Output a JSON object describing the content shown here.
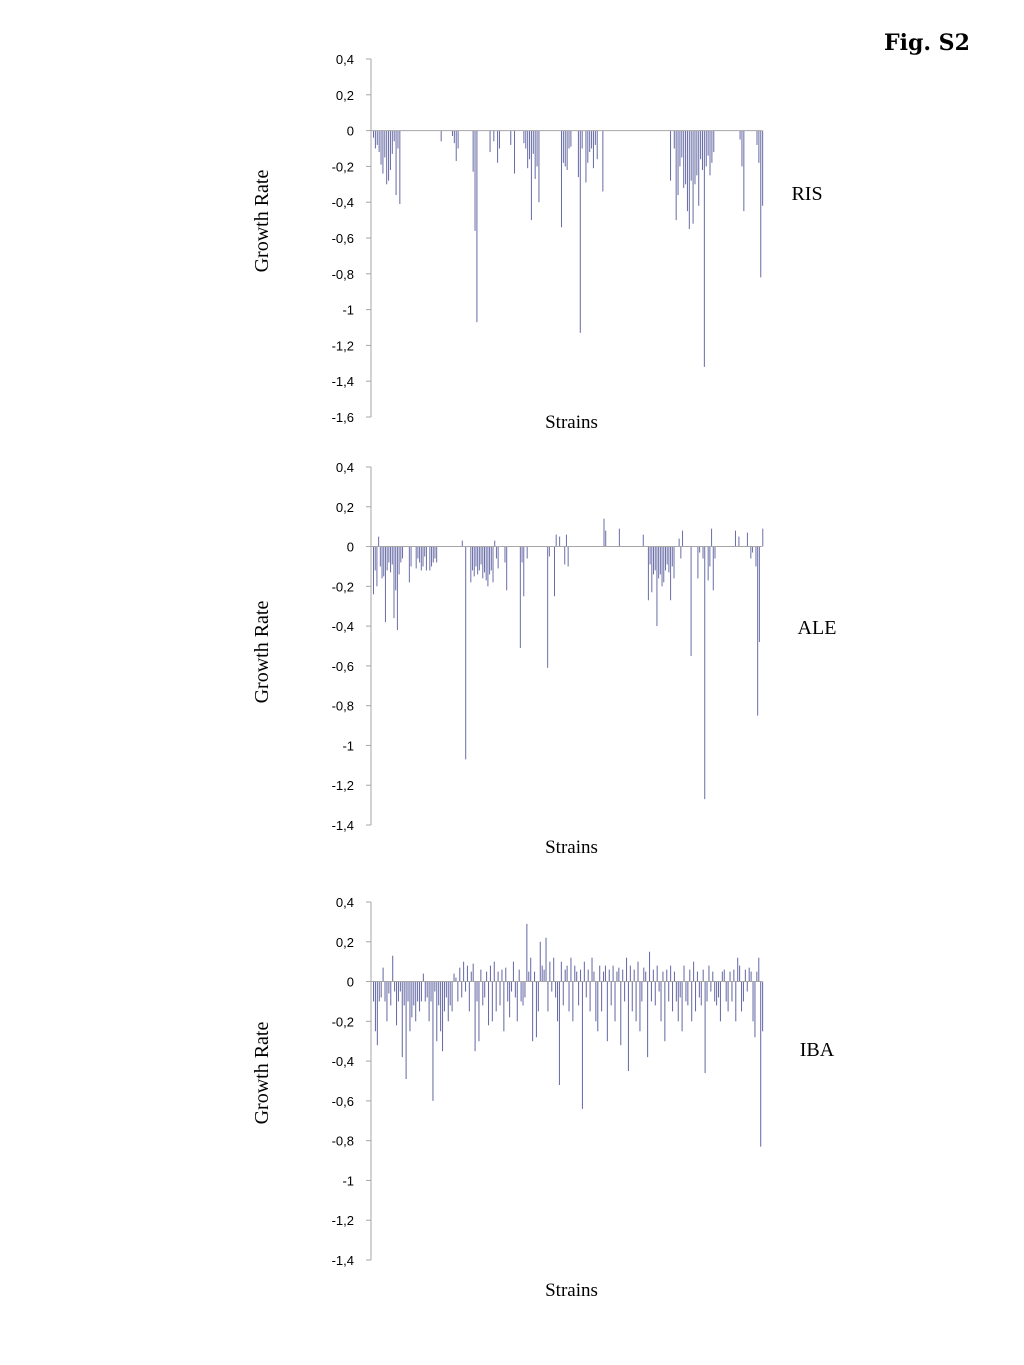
{
  "figure": {
    "title": "Fig. S2"
  },
  "style": {
    "bar_color": "#6a6ea8",
    "axis_color": "#a6a6a6"
  },
  "chart_data": [
    {
      "type": "bar",
      "panel_label": "RIS",
      "xlabel": "Strains",
      "ylabel": "Growth Rate",
      "ylim": [
        -1.6,
        0.4
      ],
      "yticks": [
        0.4,
        0.2,
        0,
        -0.2,
        -0.4,
        -0.6,
        -0.8,
        -1,
        -1.2,
        -1.4,
        -1.6
      ],
      "ytick_labels": [
        "0,4",
        "0,2",
        "0",
        "-0,2",
        "-0,4",
        "-0,6",
        "-0,8",
        "-1",
        "-1,2",
        "-1,4",
        "-1,6"
      ],
      "grid": false,
      "n_strains": 200,
      "values": [
        -0.04,
        -0.1,
        -0.08,
        -0.12,
        -0.19,
        -0.24,
        -0.15,
        -0.3,
        -0.28,
        -0.22,
        -0.13,
        -0.06,
        -0.36,
        -0.1,
        -0.41,
        0,
        0,
        0,
        0,
        0,
        0,
        0,
        0,
        0,
        0,
        0,
        0,
        0,
        0,
        0,
        0,
        0,
        0,
        0,
        0,
        0,
        -0.06,
        0,
        0,
        0,
        0,
        0,
        -0.03,
        -0.07,
        -0.17,
        -0.1,
        0,
        0,
        0,
        0,
        0,
        0,
        0,
        -0.23,
        -0.56,
        -1.07,
        0,
        0,
        0,
        0,
        0,
        0,
        -0.12,
        0,
        -0.06,
        0,
        -0.18,
        -0.1,
        0,
        0,
        0,
        0,
        0,
        -0.08,
        0,
        -0.24,
        0,
        0,
        0,
        0,
        -0.07,
        -0.1,
        -0.21,
        -0.16,
        -0.5,
        -0.13,
        -0.27,
        -0.2,
        -0.4,
        0,
        0,
        0,
        0,
        0,
        0,
        0,
        0,
        0,
        0,
        0,
        -0.54,
        -0.18,
        -0.2,
        -0.22,
        -0.1,
        -0.09,
        0,
        0,
        0,
        -0.26,
        -1.13,
        -0.1,
        0,
        -0.29,
        -0.18,
        -0.12,
        -0.1,
        -0.21,
        -0.08,
        -0.16,
        0,
        0,
        -0.34,
        0,
        0,
        0,
        0,
        0,
        0,
        0,
        0,
        0,
        0,
        0,
        0,
        0,
        0,
        0,
        0,
        0,
        0,
        0,
        0,
        0,
        0,
        0,
        0,
        0,
        0,
        0,
        0,
        0,
        0,
        0,
        0,
        0,
        0,
        0,
        -0.28,
        0,
        -0.1,
        -0.5,
        -0.36,
        -0.2,
        -0.15,
        -0.32,
        -0.3,
        -0.45,
        -0.55,
        -0.28,
        -0.52,
        -0.3,
        -0.25,
        -0.42,
        -0.16,
        -0.22,
        -1.32,
        -0.2,
        -0.14,
        -0.25,
        -0.18,
        -0.12,
        0,
        0,
        0,
        0,
        0,
        0,
        0,
        0,
        0,
        0,
        0,
        0,
        0,
        -0.05,
        -0.2,
        -0.45,
        0,
        0,
        0,
        0,
        0,
        0,
        -0.08,
        -0.18,
        -0.82,
        -0.42
      ]
    },
    {
      "type": "bar",
      "panel_label": "ALE",
      "xlabel": "Strains",
      "ylabel": "Growth Rate",
      "ylim": [
        -1.4,
        0.4
      ],
      "yticks": [
        0.4,
        0.2,
        0,
        -0.2,
        -0.4,
        -0.6,
        -0.8,
        -1,
        -1.2,
        -1.4
      ],
      "ytick_labels": [
        "0,4",
        "0,2",
        "0",
        "-0,2",
        "-0,4",
        "-0,6",
        "-0,8",
        "-1",
        "-1,2",
        "-1,4"
      ],
      "grid": false,
      "n_strains": 200,
      "values": [
        -0.24,
        -0.12,
        -0.2,
        0.05,
        -0.1,
        -0.16,
        -0.15,
        -0.38,
        -0.12,
        -0.08,
        -0.13,
        -0.09,
        -0.36,
        -0.22,
        -0.42,
        -0.14,
        -0.08,
        -0.06,
        0,
        0,
        0,
        -0.18,
        -0.1,
        0,
        0,
        -0.11,
        -0.06,
        -0.08,
        -0.12,
        -0.1,
        -0.05,
        -0.12,
        0,
        -0.12,
        -0.1,
        -0.08,
        -0.06,
        -0.08,
        0,
        0,
        0,
        0,
        0,
        0,
        0,
        0,
        0,
        0,
        0,
        0,
        0,
        0,
        0.03,
        0,
        -1.07,
        0,
        0,
        -0.18,
        -0.12,
        -0.15,
        -0.1,
        -0.14,
        -0.12,
        -0.09,
        -0.16,
        -0.13,
        -0.17,
        -0.2,
        -0.14,
        -0.12,
        -0.18,
        0.03,
        -0.06,
        -0.11,
        0,
        0,
        0,
        -0.08,
        -0.22,
        0,
        0,
        0,
        0,
        0,
        0,
        0,
        -0.51,
        -0.08,
        -0.25,
        0,
        -0.06,
        0,
        0,
        0,
        0,
        0,
        0,
        0,
        0,
        0,
        0,
        0,
        -0.61,
        -0.05,
        0,
        0,
        -0.25,
        0.06,
        0,
        0.05,
        0,
        0,
        -0.09,
        0.06,
        -0.1,
        0,
        0,
        0,
        0,
        0,
        0,
        0,
        0,
        0,
        0,
        0,
        0,
        0,
        0,
        0,
        0,
        0,
        0,
        0,
        0,
        0.14,
        0.08,
        0,
        0,
        0,
        0,
        0,
        0,
        0,
        0.09,
        0,
        0,
        0,
        0,
        0,
        0,
        0,
        0,
        0,
        0,
        0,
        0,
        0,
        0.06,
        0,
        0,
        -0.27,
        -0.09,
        -0.23,
        -0.14,
        -0.12,
        -0.4,
        -0.16,
        -0.14,
        -0.2,
        -0.18,
        -0.12,
        -0.09,
        -0.13,
        -0.27,
        -0.1,
        -0.16,
        0,
        0,
        0.04,
        -0.06,
        0.08,
        0,
        0,
        0,
        0,
        -0.55,
        0,
        0,
        0,
        -0.16,
        -0.03,
        0,
        -0.06,
        -1.27,
        0,
        -0.17,
        -0.1,
        0.09,
        -0.22,
        -0.06,
        0,
        0,
        0,
        0,
        0,
        0,
        0,
        0,
        0,
        0,
        0,
        0.08,
        0,
        0.05,
        0,
        0,
        0,
        0,
        0.07,
        0,
        -0.06,
        -0.03,
        0,
        -0.1,
        -0.85,
        -0.48,
        0,
        0.09
      ],
      "_note": ""
    },
    {
      "type": "bar",
      "panel_label": "IBA",
      "xlabel": "Strains",
      "ylabel": "Growth Rate",
      "ylim": [
        -1.4,
        0.4
      ],
      "yticks": [
        0.4,
        0.2,
        0,
        -0.2,
        -0.4,
        -0.6,
        -0.8,
        -1,
        -1.2,
        -1.4
      ],
      "ytick_labels": [
        "0,4",
        "0,2",
        "0",
        "-0,2",
        "-0,4",
        "-0,6",
        "-0,8",
        "-1",
        "-1,2",
        "-1,4"
      ],
      "grid": false,
      "n_strains": 200,
      "values": [
        -0.1,
        -0.25,
        -0.32,
        -0.1,
        -0.08,
        0.07,
        -0.1,
        -0.2,
        -0.06,
        -0.12,
        0.13,
        -0.05,
        -0.22,
        -0.1,
        -0.05,
        -0.38,
        -0.12,
        -0.49,
        -0.1,
        -0.25,
        -0.18,
        -0.12,
        -0.2,
        -0.1,
        -0.15,
        -0.1,
        0.04,
        -0.1,
        -0.08,
        -0.2,
        -0.1,
        -0.6,
        -0.05,
        -0.3,
        -0.12,
        -0.25,
        -0.35,
        -0.15,
        -0.08,
        -0.2,
        -0.12,
        -0.15,
        0.04,
        0.02,
        -0.1,
        0.07,
        -0.08,
        0.1,
        -0.05,
        0.08,
        -0.15,
        0.05,
        0.09,
        -0.35,
        -0.1,
        -0.3,
        0.06,
        -0.12,
        -0.08,
        0.05,
        -0.22,
        0.08,
        -0.2,
        0.1,
        -0.15,
        0.05,
        -0.12,
        0.06,
        -0.25,
        0.07,
        -0.1,
        -0.18,
        -0.05,
        0.1,
        -0.08,
        -0.2,
        0.06,
        -0.1,
        -0.12,
        -0.08,
        0.29,
        0.05,
        0.12,
        -0.3,
        0.05,
        -0.28,
        -0.15,
        0.2,
        0.08,
        0.06,
        0.22,
        -0.15,
        0.1,
        -0.05,
        0.12,
        -0.08,
        -0.2,
        -0.52,
        0.1,
        -0.12,
        0.06,
        0.08,
        -0.15,
        0.12,
        -0.2,
        0.08,
        0.05,
        -0.12,
        0.06,
        -0.64,
        0.1,
        -0.08,
        0.06,
        -0.15,
        0.12,
        0.05,
        -0.2,
        -0.25,
        0.08,
        -0.15,
        0.05,
        0.08,
        -0.3,
        0.06,
        -0.12,
        0.08,
        -0.2,
        0.05,
        0.07,
        -0.32,
        0.06,
        -0.1,
        0.12,
        -0.45,
        0.08,
        -0.15,
        0.06,
        -0.2,
        0.1,
        -0.25,
        -0.1,
        0.07,
        0.05,
        -0.38,
        0.15,
        -0.1,
        0.06,
        -0.12,
        0.08,
        -0.05,
        -0.2,
        0.05,
        -0.3,
        0.06,
        -0.1,
        0.08,
        -0.15,
        0.05,
        -0.1,
        -0.2,
        -0.08,
        -0.25,
        0.08,
        -0.1,
        -0.12,
        0.06,
        -0.2,
        0.1,
        -0.15,
        0.05,
        -0.08,
        -0.12,
        0.06,
        -0.46,
        -0.1,
        0.08,
        -0.05,
        0.05,
        -0.1,
        -0.12,
        -0.08,
        -0.2,
        0.05,
        0.06,
        -0.1,
        -0.15,
        0.05,
        -0.1,
        0.06,
        -0.2,
        0.12,
        0.08,
        -0.15,
        -0.1,
        0.06,
        -0.05,
        0.07,
        0.05,
        -0.2,
        -0.28,
        0.05,
        0.12,
        -0.83,
        -0.25
      ]
    }
  ]
}
